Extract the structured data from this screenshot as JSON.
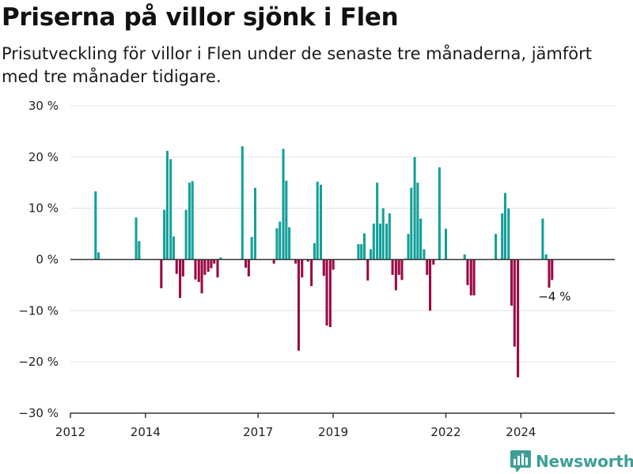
{
  "title": "Priserna på villor sjönk i Flen",
  "subtitle": "Prisutveckling för villor i Flen under de senaste tre månaderna, jämfört med tre månader tidigare.",
  "brand": {
    "name": "Newsworthy",
    "icon": "newsworthy-logo-icon",
    "color": "#3d9f95"
  },
  "chart_data": {
    "type": "bar",
    "title": "Priserna på villor sjönk i Flen",
    "xlabel": "",
    "ylabel": "",
    "ylim": [
      -30,
      30
    ],
    "yticks": [
      30,
      20,
      10,
      0,
      -10,
      -20,
      -30
    ],
    "ytick_labels": [
      "30 %",
      "20 %",
      "10 %",
      "0 %",
      "−10 %",
      "−20 %",
      "−30 %"
    ],
    "xlim": [
      2012.0,
      2026.5
    ],
    "xticks": [
      2012,
      2014,
      2017,
      2019,
      2022,
      2024
    ],
    "xtick_labels": [
      "2012",
      "2014",
      "2017",
      "2019",
      "2022",
      "2024"
    ],
    "grid": true,
    "positive_color": "#14a09a",
    "negative_color": "#9a0a45",
    "annotation": {
      "text": "−4 %",
      "x": 2024.8,
      "y": -4
    },
    "x": [
      2012.67,
      2012.75,
      2013.75,
      2013.83,
      2014.42,
      2014.5,
      2014.58,
      2014.67,
      2014.75,
      2014.83,
      2014.92,
      2015.0,
      2015.08,
      2015.17,
      2015.25,
      2015.33,
      2015.42,
      2015.5,
      2015.58,
      2015.67,
      2015.75,
      2015.83,
      2015.92,
      2016.0,
      2016.58,
      2016.67,
      2016.75,
      2016.83,
      2016.92,
      2017.42,
      2017.5,
      2017.58,
      2017.67,
      2017.75,
      2017.83,
      2017.92,
      2018.0,
      2018.08,
      2018.17,
      2018.25,
      2018.33,
      2018.42,
      2018.5,
      2018.58,
      2018.67,
      2018.75,
      2018.83,
      2018.92,
      2019.0,
      2019.67,
      2019.75,
      2019.83,
      2019.92,
      2020.0,
      2020.08,
      2020.17,
      2020.25,
      2020.33,
      2020.42,
      2020.5,
      2020.58,
      2020.67,
      2020.75,
      2020.83,
      2020.92,
      2021.0,
      2021.08,
      2021.17,
      2021.25,
      2021.33,
      2021.42,
      2021.5,
      2021.58,
      2021.67,
      2021.75,
      2021.83,
      2022.0,
      2022.08,
      2022.5,
      2022.58,
      2022.67,
      2022.75,
      2023.33,
      2023.5,
      2023.58,
      2023.67,
      2023.75,
      2023.83,
      2023.92,
      2024.58,
      2024.67,
      2024.75,
      2024.83
    ],
    "values": [
      13.3,
      1.4,
      8.2,
      3.6,
      -5.6,
      9.7,
      21.2,
      19.6,
      4.5,
      -2.8,
      -7.5,
      -3.3,
      9.7,
      15.0,
      15.3,
      -3.9,
      -4.4,
      -6.6,
      -3.0,
      -2.4,
      -1.7,
      -0.8,
      -3.5,
      0.4,
      22.1,
      -1.6,
      -3.3,
      4.4,
      14.0,
      -0.8,
      6.1,
      7.4,
      21.6,
      15.4,
      6.3,
      0.0,
      -0.8,
      -17.8,
      -3.5,
      0.0,
      -0.4,
      -5.2,
      3.2,
      15.2,
      14.6,
      -3.2,
      -12.9,
      -13.2,
      -2.0,
      3.0,
      3.0,
      5.1,
      -4.1,
      2.0,
      7.0,
      15.0,
      7.0,
      10.0,
      7.0,
      9.0,
      -3.0,
      -6.0,
      -3.0,
      -4.0,
      0.2,
      5.0,
      14.0,
      20.0,
      15.0,
      8.0,
      2.0,
      -3.0,
      -10.0,
      -1.0,
      0.0,
      18.0,
      6.0,
      0.0,
      1.0,
      -5.0,
      -7.0,
      -7.0,
      5.0,
      9.0,
      13.0,
      10.0,
      -9.0,
      -17.0,
      -23.0,
      8.0,
      1.0,
      -5.5,
      -4.0
    ]
  }
}
